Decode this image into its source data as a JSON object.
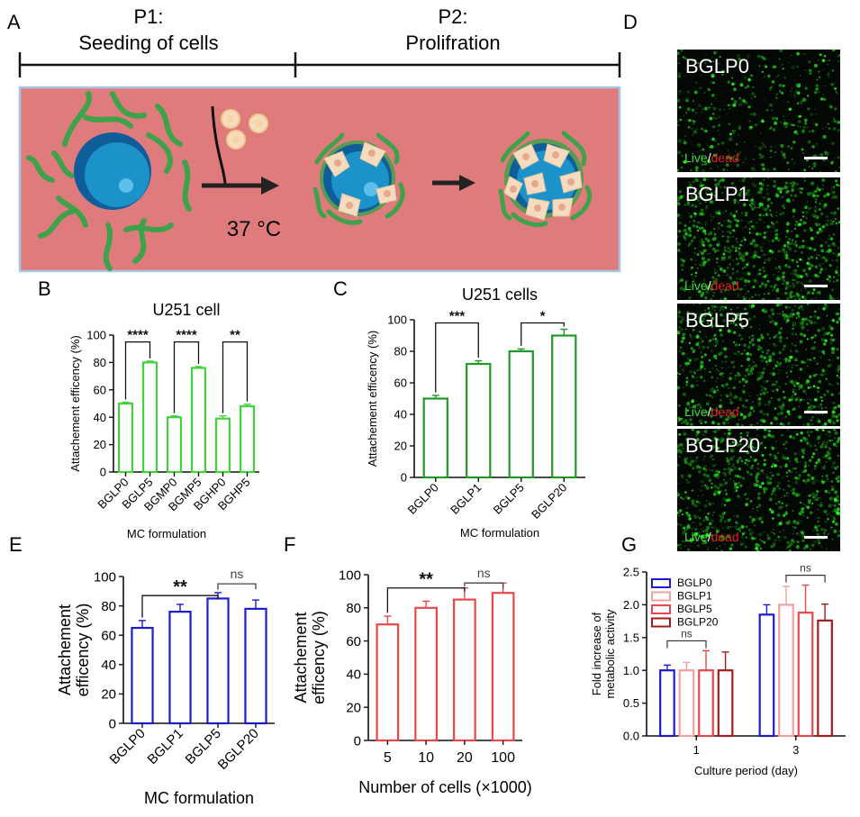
{
  "letters": {
    "a": "A",
    "b": "B",
    "c": "C",
    "d": "D",
    "e": "E",
    "f": "F",
    "g": "G"
  },
  "schematic": {
    "p1_line1": "P1:",
    "p1_line2": "Seeding of cells",
    "p2_line1": "P2:",
    "p2_line2": "Prolifration",
    "temp": "37 °C",
    "colors": {
      "background": "#e07b7d",
      "bead": "#1b92c9",
      "fiber": "#3ea24a",
      "cell": "#f5dcc0"
    }
  },
  "microscopy": {
    "panels": [
      "BGLP0",
      "BGLP1",
      "BGLP5",
      "BGLP20"
    ],
    "stain_live": "Live",
    "stain_slash": "/",
    "stain_dead": "dead"
  },
  "chart_data": [
    {
      "id": "B",
      "type": "bar",
      "title": "U251 cell",
      "xlabel": "MC formulation",
      "ylabel": "Attachement efficency (%)",
      "ylim": [
        0,
        100
      ],
      "yticks": [
        0,
        20,
        40,
        60,
        80,
        100
      ],
      "categories": [
        "BGLP0",
        "BGLP5",
        "BGMP0",
        "BGMP5",
        "BGHP0",
        "BGHP5"
      ],
      "values": [
        50,
        80,
        40,
        76,
        39,
        48
      ],
      "errors": [
        1,
        1,
        1,
        1,
        2,
        1.5
      ],
      "color": "#44d13c",
      "significance": [
        {
          "from": 0,
          "to": 1,
          "label": "****"
        },
        {
          "from": 2,
          "to": 3,
          "label": "****"
        },
        {
          "from": 4,
          "to": 5,
          "label": "**"
        }
      ]
    },
    {
      "id": "C",
      "type": "bar",
      "title": "U251 cells",
      "xlabel": "MC formulation",
      "ylabel": "Attachement efficency (%)",
      "ylim": [
        0,
        100
      ],
      "yticks": [
        0,
        20,
        40,
        60,
        80,
        100
      ],
      "categories": [
        "BGLP0",
        "BGLP1",
        "BGLP5",
        "BGLP20"
      ],
      "values": [
        50,
        72,
        80,
        90
      ],
      "errors": [
        2,
        2,
        1.5,
        4
      ],
      "color": "#1f9a23",
      "significance": [
        {
          "from": 0,
          "to": 1,
          "label": "***"
        },
        {
          "from": 2,
          "to": 3,
          "label": "*"
        }
      ]
    },
    {
      "id": "E",
      "type": "bar",
      "title": "",
      "xlabel": "MC formulation",
      "ylabel": "Attachement efficency (%)",
      "ylim": [
        0,
        100
      ],
      "yticks": [
        0,
        20,
        40,
        60,
        80,
        100
      ],
      "categories": [
        "BGLP0",
        "BGLP1",
        "BGLP5",
        "BGLP20"
      ],
      "values": [
        65,
        76,
        85,
        78
      ],
      "errors": [
        5,
        5,
        4,
        6
      ],
      "color": "#1c1ccc",
      "significance": [
        {
          "from": 0,
          "to": 2,
          "label": "**"
        },
        {
          "from": 2,
          "to": 3,
          "label": "ns"
        }
      ]
    },
    {
      "id": "F",
      "type": "bar",
      "title": "",
      "xlabel": "Number of cells (×1000)",
      "ylabel": "Attachement efficency (%)",
      "ylim": [
        0,
        100
      ],
      "yticks": [
        0,
        20,
        40,
        60,
        80,
        100
      ],
      "categories": [
        "5",
        "10",
        "20",
        "100"
      ],
      "values": [
        70,
        80,
        85,
        89
      ],
      "errors": [
        5,
        4,
        7,
        6
      ],
      "color": "#e8484a",
      "significance": [
        {
          "from": 0,
          "to": 2,
          "label": "**"
        },
        {
          "from": 2,
          "to": 3,
          "label": "ns"
        }
      ]
    },
    {
      "id": "G",
      "type": "bar",
      "title": "",
      "xlabel": "Culture period (day)",
      "ylabel": "Fold increase of metabolic activity",
      "ylim": [
        0,
        2.5
      ],
      "yticks": [
        0.0,
        0.5,
        1.0,
        1.5,
        2.0,
        2.5
      ],
      "categories": [
        "1",
        "3"
      ],
      "legend": "top-left",
      "series": [
        {
          "name": "BGLP0",
          "values": [
            1.0,
            1.85
          ],
          "errors": [
            0.08,
            0.15
          ],
          "color": "#1c1ccc"
        },
        {
          "name": "BGLP1",
          "values": [
            1.0,
            2.0
          ],
          "errors": [
            0.12,
            0.28
          ],
          "color": "#f2a0a0"
        },
        {
          "name": "BGLP5",
          "values": [
            1.0,
            1.88
          ],
          "errors": [
            0.3,
            0.42
          ],
          "color": "#e8484a"
        },
        {
          "name": "BGLP20",
          "values": [
            1.0,
            1.76
          ],
          "errors": [
            0.28,
            0.25
          ],
          "color": "#a51b1b"
        }
      ],
      "significance": [
        {
          "group": 0,
          "from": 0,
          "to": 2,
          "label": "ns"
        },
        {
          "group": 1,
          "from": 1,
          "to": 3,
          "label": "ns"
        }
      ]
    }
  ]
}
